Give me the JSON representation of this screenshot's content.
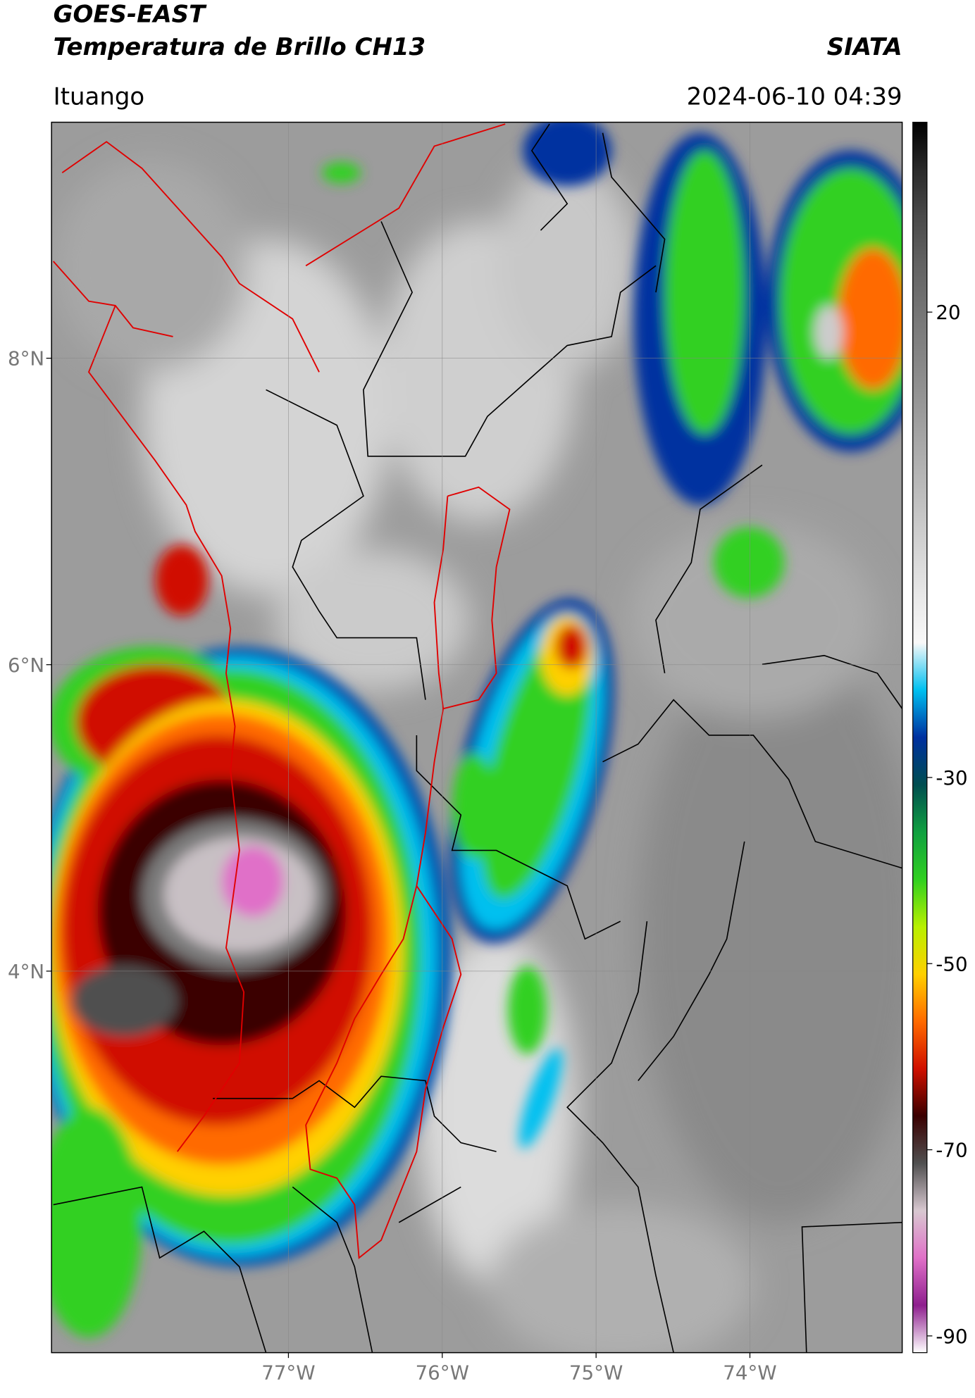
{
  "header": {
    "title": "GOES-EAST",
    "subtitle": "Temperatura de Brillo CH13",
    "source": "SIATA",
    "location": "Ituango",
    "datetime": "2024-06-10 04:39"
  },
  "map": {
    "xlim": [
      -78.54,
      -73.01
    ],
    "ylim": [
      1.51,
      9.54
    ],
    "xticks": [
      {
        "value": -77,
        "label": "77°W"
      },
      {
        "value": -76,
        "label": "76°W"
      },
      {
        "value": -75,
        "label": "75°W"
      },
      {
        "value": -74,
        "label": "74°W"
      }
    ],
    "yticks": [
      {
        "value": 4,
        "label": "4°N"
      },
      {
        "value": 6,
        "label": "6°N"
      },
      {
        "value": 8,
        "label": "8°N"
      }
    ],
    "grid": true
  },
  "colorbar": {
    "lim": [
      -91.8,
      40.4
    ],
    "ticks": [
      20,
      -30,
      -50,
      -70,
      -90
    ],
    "colors": [
      "#ffffff",
      "#8e1f8e",
      "#e070c8",
      "#d8c8d0",
      "#505050",
      "#3a0000",
      "#d01000",
      "#ff6a00",
      "#ffd000",
      "#b8f000",
      "#30d020",
      "#10a040",
      "#004e50",
      "#0030a0",
      "#00c0f0",
      "#f8f8f8",
      "#e8e8e8",
      "#d4d4d4",
      "#c0c0c0",
      "#acacac",
      "#989898",
      "#868686",
      "#757575",
      "#626262",
      "#4a4a4a",
      "#2a2a2a",
      "#000000"
    ]
  }
}
